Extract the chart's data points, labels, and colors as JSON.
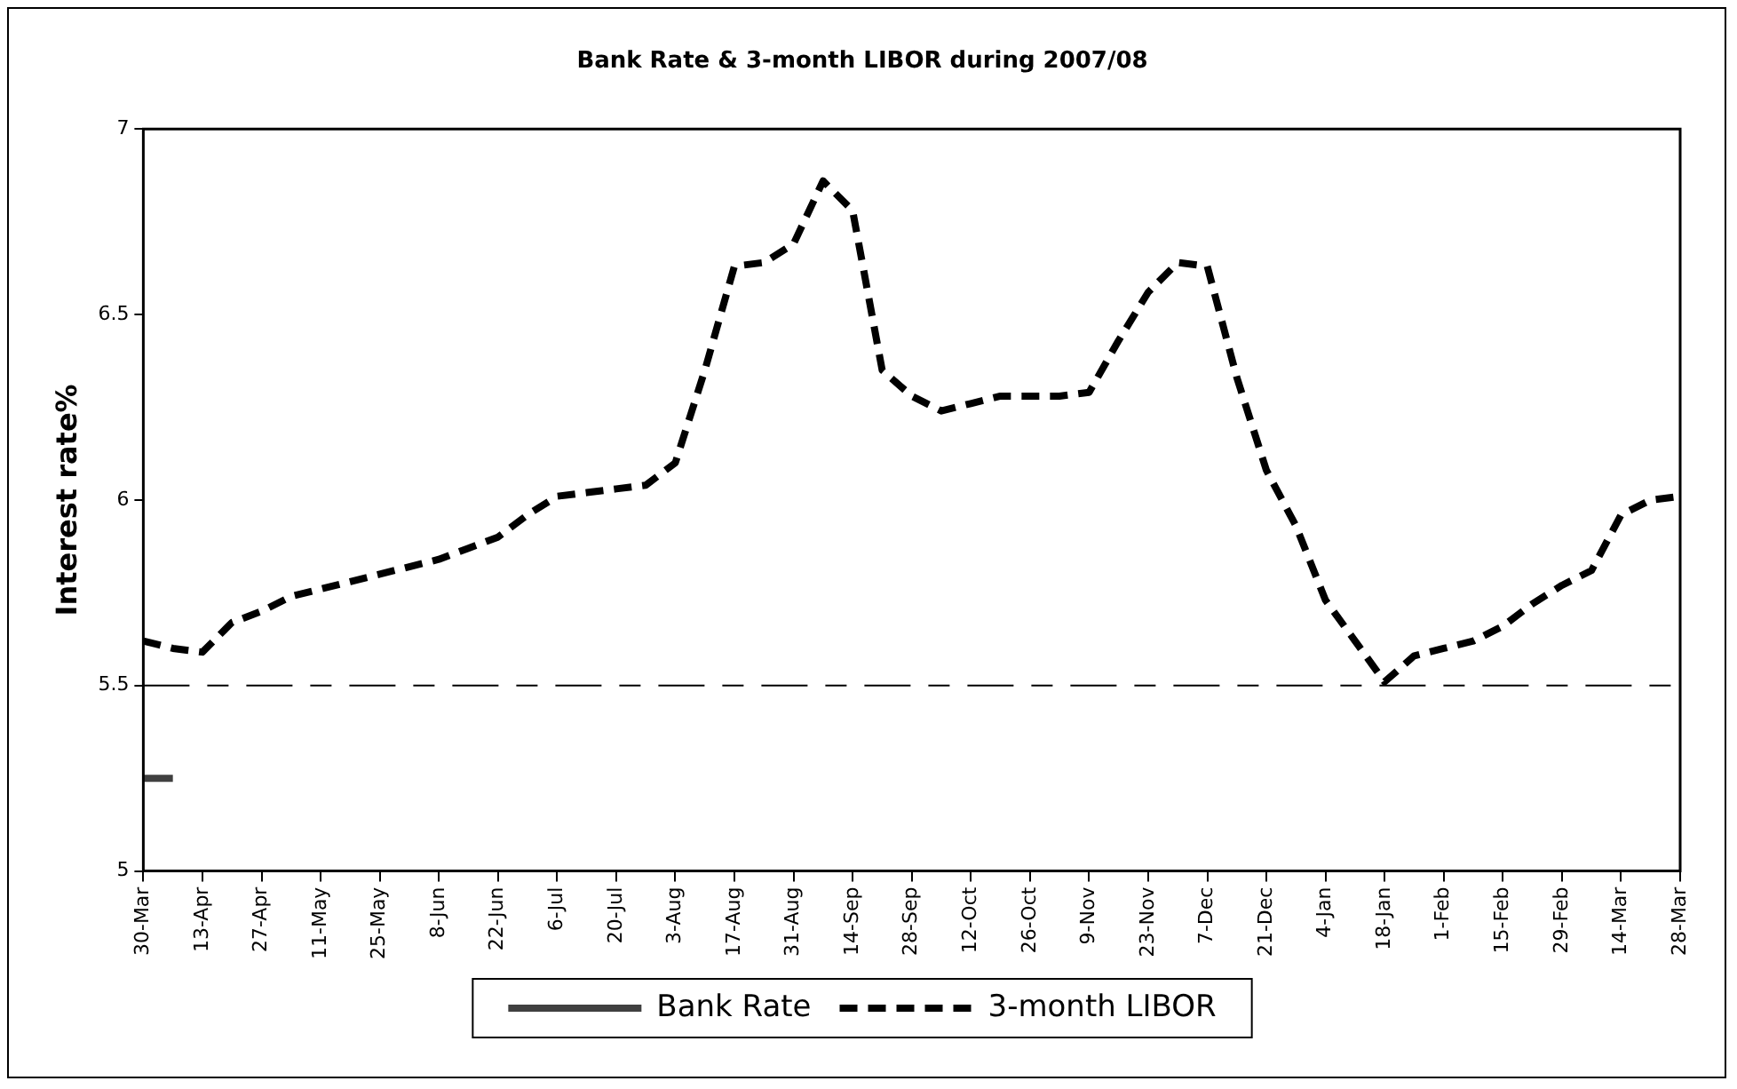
{
  "chart_data": {
    "type": "line",
    "title": "Bank Rate & 3-month LIBOR during 2007/08",
    "ylabel": "Interest rate%",
    "categories": [
      "30-Mar",
      null,
      "13-Apr",
      null,
      "27-Apr",
      null,
      "11-May",
      null,
      "25-May",
      null,
      "8-Jun",
      null,
      "22-Jun",
      null,
      "6-Jul",
      null,
      "20-Jul",
      null,
      "3-Aug",
      null,
      "17-Aug",
      null,
      "31-Aug",
      null,
      "14-Sep",
      null,
      "28-Sep",
      null,
      "12-Oct",
      null,
      "26-Oct",
      null,
      "9-Nov",
      null,
      "23-Nov",
      null,
      "7-Dec",
      null,
      "21-Dec",
      null,
      "4-Jan",
      null,
      "18-Jan",
      null,
      "1-Feb",
      null,
      "15-Feb",
      null,
      "29-Feb",
      null,
      "14-Mar",
      null,
      "28-Mar"
    ],
    "series": [
      {
        "name": "Bank Rate",
        "color": "#404040",
        "line_style": "solid",
        "values": [
          5.25,
          5.25,
          null,
          null,
          null,
          null,
          null,
          null,
          null,
          null,
          null,
          null,
          null,
          null,
          null,
          null,
          null,
          null,
          null,
          null,
          null,
          null,
          null,
          null,
          null,
          null,
          null,
          null,
          null,
          null,
          null,
          null,
          null,
          null,
          null,
          null,
          null,
          null,
          null,
          null,
          null,
          null,
          null,
          null,
          null,
          null,
          null,
          null,
          null,
          null,
          null,
          null,
          null
        ]
      },
      {
        "name": "3-month LIBOR",
        "color": "#000000",
        "line_style": "dashed",
        "values": [
          5.62,
          5.6,
          5.59,
          5.67,
          5.7,
          5.74,
          5.76,
          5.78,
          5.8,
          5.82,
          5.84,
          5.87,
          5.9,
          5.96,
          6.01,
          6.02,
          6.03,
          6.04,
          6.1,
          6.35,
          6.63,
          6.64,
          6.69,
          6.86,
          6.78,
          6.35,
          6.28,
          6.24,
          6.26,
          6.28,
          6.28,
          6.28,
          6.29,
          6.43,
          6.56,
          6.64,
          6.63,
          6.33,
          6.08,
          5.93,
          5.73,
          5.62,
          5.51,
          5.58,
          5.6,
          5.62,
          5.66,
          5.72,
          5.77,
          5.81,
          5.96,
          6.0,
          6.01
        ]
      }
    ],
    "ylim": [
      5,
      7
    ],
    "yticks": [
      5,
      5.5,
      6,
      6.5,
      7
    ],
    "ref_lines": [
      {
        "axis": "y",
        "value": 5.5,
        "color": "#000000",
        "line_style": "dashed"
      }
    ],
    "grid": false,
    "legend": "bottom",
    "marker": "none"
  }
}
